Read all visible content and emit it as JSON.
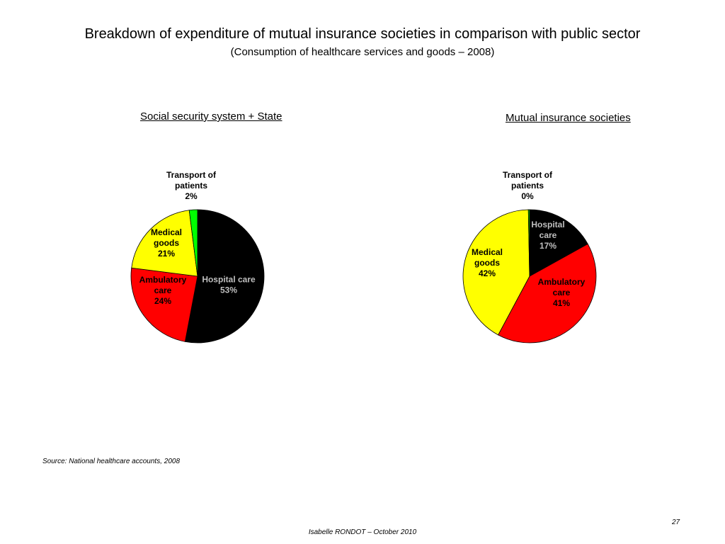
{
  "slide": {
    "title": "Breakdown of expenditure of mutual insurance societies in comparison with public sector",
    "subtitle": "(Consumption of healthcare services and goods – 2008)",
    "source": "Source: National healthcare accounts, 2008",
    "page_number": "27",
    "footer": "Isabelle RONDOT – October 2010"
  },
  "chart_data": [
    {
      "type": "pie",
      "title": "Social security system + State",
      "slices": [
        {
          "label": [
            "Hospital care"
          ],
          "value_label": "53%",
          "value": 53,
          "color": "#000000",
          "label_color": "#bfbfbf"
        },
        {
          "label": [
            "Ambulatory",
            "care"
          ],
          "value_label": "24%",
          "value": 24,
          "color": "#ff0000",
          "label_color": "#000000"
        },
        {
          "label": [
            "Medical",
            "goods"
          ],
          "value_label": "21%",
          "value": 21,
          "color": "#ffff00",
          "label_color": "#000000"
        },
        {
          "label": [
            "Transport of",
            "patients"
          ],
          "value_label": "2%",
          "value": 2,
          "color": "#00ff00",
          "label_color": "#000000"
        }
      ]
    },
    {
      "type": "pie",
      "title": "Mutual insurance societies",
      "slices": [
        {
          "label": [
            "Hospital",
            "care"
          ],
          "value_label": "17%",
          "value": 17,
          "color": "#000000",
          "label_color": "#bfbfbf"
        },
        {
          "label": [
            "Ambulatory",
            "care"
          ],
          "value_label": "41%",
          "value": 41,
          "color": "#ff0000",
          "label_color": "#000000"
        },
        {
          "label": [
            "Medical",
            "goods"
          ],
          "value_label": "42%",
          "value": 42,
          "color": "#ffff00",
          "label_color": "#000000"
        },
        {
          "label": [
            "Transport of",
            "patients"
          ],
          "value_label": "0%",
          "value": 0.3,
          "color": "#00ff00",
          "label_color": "#000000"
        }
      ]
    }
  ]
}
